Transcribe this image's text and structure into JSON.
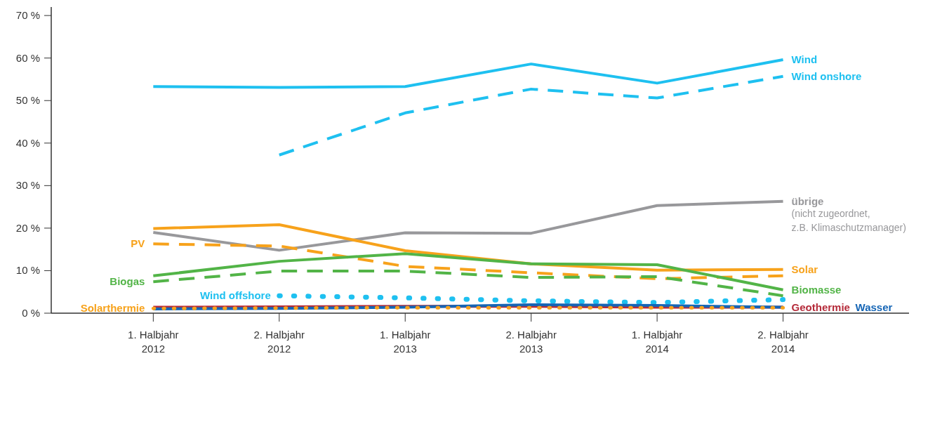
{
  "chart_data": {
    "type": "line",
    "categories": [
      "1. Halbjahr 2012",
      "2. Halbjahr 2012",
      "1. Halbjahr 2013",
      "2. Halbjahr 2013",
      "1. Halbjahr 2014",
      "2. Halbjahr 2014"
    ],
    "ylim": [
      0,
      72
    ],
    "yticks": [
      {
        "value": 0,
        "label": "0 %"
      },
      {
        "value": 10,
        "label": "10 %"
      },
      {
        "value": 20,
        "label": "20 %"
      },
      {
        "value": 30,
        "label": "30 %"
      },
      {
        "value": 40,
        "label": "40 %"
      },
      {
        "value": 50,
        "label": "50 %"
      },
      {
        "value": 60,
        "label": "60 %"
      },
      {
        "value": 70,
        "label": "70 %"
      }
    ],
    "grid": false,
    "legend": false,
    "marker": "none",
    "series": [
      {
        "name": "Wind",
        "color": "#1ec0f0",
        "line_style": "solid",
        "values": [
          53.3,
          53.1,
          53.3,
          58.6,
          54.1,
          59.6
        ]
      },
      {
        "name": "Wind onshore",
        "color": "#1ec0f0",
        "line_style": "dashed",
        "values": [
          null,
          37.2,
          47.1,
          52.7,
          50.6,
          55.7
        ]
      },
      {
        "name": "übrige",
        "color": "#98989b",
        "line_style": "solid",
        "values": [
          19.0,
          14.8,
          18.9,
          18.8,
          25.3,
          26.3
        ]
      },
      {
        "name": "Solar",
        "color": "#f7a21b",
        "line_style": "solid",
        "values": [
          19.9,
          20.8,
          14.7,
          11.6,
          10.1,
          10.3
        ]
      },
      {
        "name": "PV",
        "color": "#f7a21b",
        "line_style": "dashed",
        "values": [
          16.3,
          15.8,
          11.0,
          9.5,
          8.1,
          8.8
        ]
      },
      {
        "name": "Biomasse",
        "color": "#52b447",
        "line_style": "solid",
        "values": [
          8.8,
          12.2,
          14.0,
          11.6,
          11.4,
          5.5
        ]
      },
      {
        "name": "Biogas",
        "color": "#52b447",
        "line_style": "dashed",
        "values": [
          7.4,
          9.9,
          9.9,
          8.4,
          8.6,
          4.1
        ]
      },
      {
        "name": "Wind offshore",
        "color": "#1ec0f0",
        "line_style": "dotted",
        "values": [
          null,
          4.1,
          3.6,
          2.9,
          2.5,
          3.2
        ]
      },
      {
        "name": "Geothermie",
        "color": "#b52b3a",
        "line_style": "solid",
        "values": [
          1.4,
          1.5,
          1.6,
          1.6,
          1.4,
          1.4
        ]
      },
      {
        "name": "Wasser",
        "color": "#1565b5",
        "line_style": "solid",
        "values": [
          1.0,
          1.1,
          1.4,
          2.0,
          1.8,
          1.4
        ]
      },
      {
        "name": "Solarthermie",
        "color": "#f7a21b",
        "line_style": "dotted",
        "values": [
          1.1,
          1.2,
          1.3,
          1.3,
          1.3,
          1.3
        ]
      }
    ],
    "annotations": [
      {
        "text": "(nicht zugeordnet, z.B. Klimaschutzmanager)",
        "x": "2. Halbjahr 2014",
        "y": 26.3
      }
    ]
  }
}
